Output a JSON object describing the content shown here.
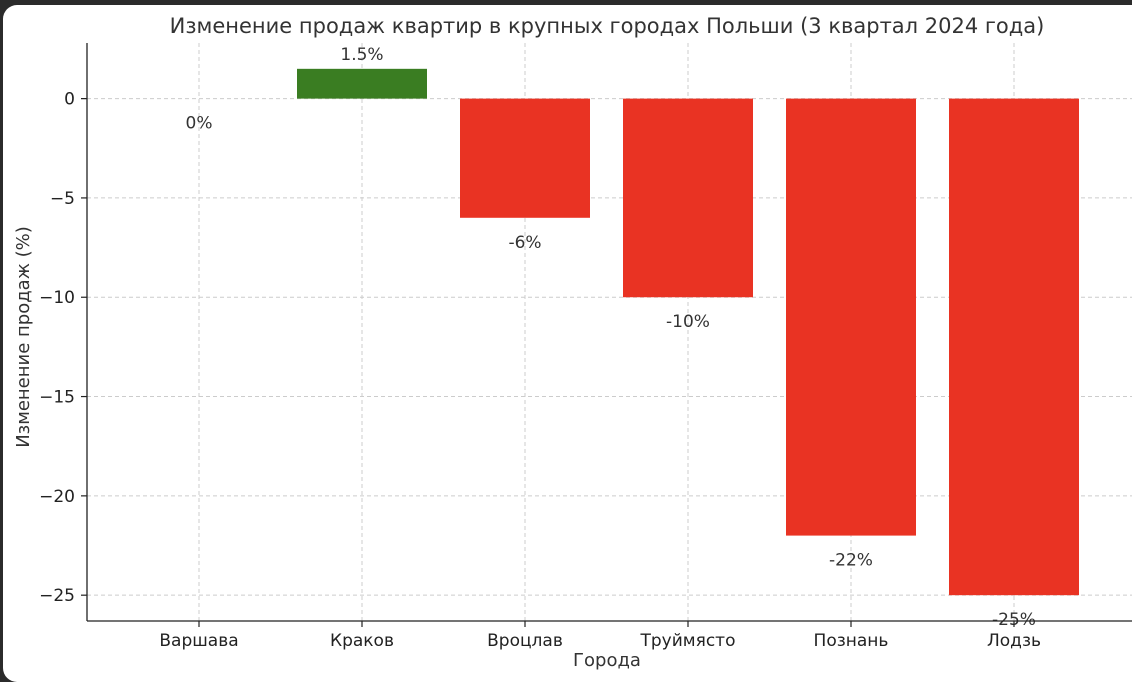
{
  "chart_data": {
    "type": "bar",
    "title": "Изменение продаж квартир в крупных городах Польши (3 квартал 2024 года)",
    "xlabel": "Города",
    "ylabel": "Изменение продаж (%)",
    "categories": [
      "Варшава",
      "Краков",
      "Вроцлав",
      "Труймясто",
      "Познань",
      "Лодзь"
    ],
    "values": [
      0,
      1.5,
      -6,
      -10,
      -22,
      -25
    ],
    "data_labels": [
      "0%",
      "1.5%",
      "-6%",
      "-10%",
      "-22%",
      "-25%"
    ],
    "ylim": [
      -26.3,
      2.8
    ],
    "yticks": [
      0,
      -5,
      -10,
      -15,
      -20,
      -25
    ],
    "ytick_labels": [
      "0",
      "−5",
      "−10",
      "−15",
      "−20",
      "−25"
    ],
    "grid": true,
    "colors": {
      "positive": "#3a7d22",
      "negative": "#e93323"
    }
  }
}
